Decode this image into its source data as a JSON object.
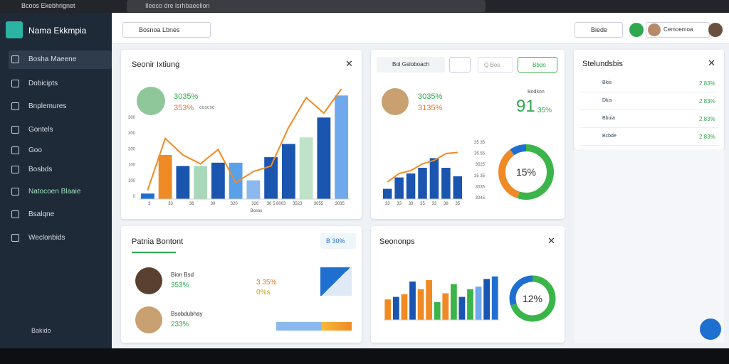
{
  "window": {
    "title": "Bcoos Ekebhrignet",
    "address": "Ileeco dre lsrhbaeelion"
  },
  "sidebar": {
    "brand": "Nama Ekkmpia",
    "items": [
      "Bosha Maeene",
      "Dobicipts",
      "Bnplemures",
      "Gontels",
      "Goo",
      "Bosbds",
      "Natocoen Blaaie",
      "Bsalqne",
      "Weclonbids"
    ],
    "footer": "Bakido"
  },
  "header": {
    "search": "Bosnoa Lbnes",
    "button": "Biede",
    "user": "Cemoemoa"
  },
  "card1": {
    "title": "Seonir Ixtiung",
    "stat1": "3035%",
    "stat2": "353%",
    "note": "coscsc",
    "yticks": [
      "300",
      "300",
      "300",
      "100",
      "100",
      "0"
    ],
    "xticks": [
      "3",
      "33",
      "36",
      "30",
      "320",
      "326",
      "30 5 8003",
      "3523",
      "3055",
      "3035"
    ],
    "xlabel": "Bosos",
    "bars": [
      5,
      40,
      30,
      30,
      33,
      33,
      17,
      38,
      50,
      56,
      74,
      94
    ],
    "bar_colors": [
      "#1f6fd1",
      "#f08a24",
      "#1a55b0",
      "#a8d8b9",
      "#1a55b0",
      "#5aa0e8",
      "#8bb8ee",
      "#1a55b0",
      "#1a55b0",
      "#bfe3c8",
      "#1a55b0",
      "#6fa8ec"
    ],
    "line": [
      8,
      55,
      40,
      32,
      45,
      15,
      25,
      30,
      65,
      92,
      78,
      100
    ]
  },
  "card2": {
    "filter": "Bol Gsloboach",
    "search": "Q Bos",
    "action": "Bbdo",
    "stat1": "3035%",
    "stat2": "3135%",
    "side_label": "Bodkon",
    "side_value": "91",
    "side_pct": "35%",
    "yticks": [
      "35 35",
      "35 55",
      "3525",
      "35 35",
      "3035",
      "3045"
    ],
    "xticks": [
      "33",
      "33",
      "33",
      "35",
      "33",
      "38",
      "35"
    ],
    "bars": [
      18,
      38,
      45,
      55,
      72,
      55,
      40
    ],
    "line": [
      30,
      45,
      50,
      62,
      68,
      80,
      82
    ],
    "donut_label": "15%",
    "donut": [
      55,
      35,
      10
    ],
    "donut_colors": [
      "#3bb54a",
      "#f08a24",
      "#1f6fd1"
    ]
  },
  "card3": {
    "title": "Stelundsbis",
    "rows": [
      [
        "Bkis",
        "2.83%"
      ],
      [
        "Dkis",
        "2.83%"
      ],
      [
        "Bbuia",
        "2.83%"
      ],
      [
        "Bcbde",
        "2.83%"
      ]
    ]
  },
  "card4": {
    "title": "Patnia Bontont",
    "badge": "B 30%",
    "people": [
      [
        "Bion Bsd",
        "353%"
      ],
      [
        "Bsobdubhay",
        "233%"
      ]
    ],
    "mini1": "3 35%",
    "mini2": "0%s"
  },
  "card5": {
    "title": "Seononps",
    "bars": [
      40,
      45,
      50,
      75,
      60,
      78,
      35,
      52,
      70,
      45,
      60,
      65,
      80,
      85
    ],
    "bar_colors": [
      "#f08a24",
      "#1a55b0",
      "#f08a24",
      "#1a55b0",
      "#f08a24",
      "#f08a24",
      "#3bb54a",
      "#f08a24",
      "#3bb54a",
      "#1a55b0",
      "#3bb54a",
      "#6fa8ec",
      "#1a55b0",
      "#1f6fd1"
    ],
    "donut_label": "12%",
    "donut": [
      70,
      30
    ],
    "donut_colors": [
      "#3bb54a",
      "#1f6fd1"
    ]
  }
}
